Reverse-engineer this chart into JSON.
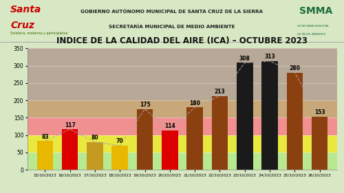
{
  "title": "INDICE DE LA CALIDAD DEL AIRE (ICA) – OCTUBRE 2023",
  "header_line1": "GOBIERNO AUTÓNOMO MUNICIPAL DE SANTA CRUZ DE LA SIERRA",
  "header_line2": "SECRETARÍA MUNICIPAL DE MEDIO AMBIENTE",
  "categories": [
    "15/10/2023",
    "16/10/2023",
    "17/10/2023",
    "18/10/2023",
    "19/10/2023",
    "20/10/2023",
    "21/10/2023",
    "22/10/2023",
    "23/10/2023",
    "24/10/2023",
    "25/10/2023",
    "26/10/2023"
  ],
  "values": [
    83,
    117,
    80,
    70,
    175,
    114,
    180,
    213,
    308,
    313,
    280,
    153
  ],
  "bar_colors": [
    "#e8b800",
    "#dd0000",
    "#c49a20",
    "#e8b800",
    "#8B4010",
    "#dd0000",
    "#8B4010",
    "#8B4010",
    "#1a1a1a",
    "#1a1a1a",
    "#8B4010",
    "#8B4010"
  ],
  "ylim": [
    0,
    350
  ],
  "yticks": [
    0,
    50,
    100,
    150,
    200,
    250,
    300,
    350
  ],
  "bg_color": "#d8e8c4",
  "plot_bg": "#d8e8c4",
  "header_bg": "#d8e8c4",
  "band_colors": [
    {
      "ymin": 0,
      "ymax": 50,
      "color": "#b8e890"
    },
    {
      "ymin": 50,
      "ymax": 100,
      "color": "#e8e840"
    },
    {
      "ymin": 100,
      "ymax": 150,
      "color": "#f09090"
    },
    {
      "ymin": 150,
      "ymax": 200,
      "color": "#c8a878"
    },
    {
      "ymin": 200,
      "ymax": 350,
      "color": "#b8a898"
    }
  ],
  "trend_line_color": "#aaaaaa",
  "value_label_fontsize": 5.5,
  "title_fontsize": 8.5,
  "header_fontsize": 5.2,
  "santa_cruz_fontsize": 10,
  "smma_fontsize": 10
}
